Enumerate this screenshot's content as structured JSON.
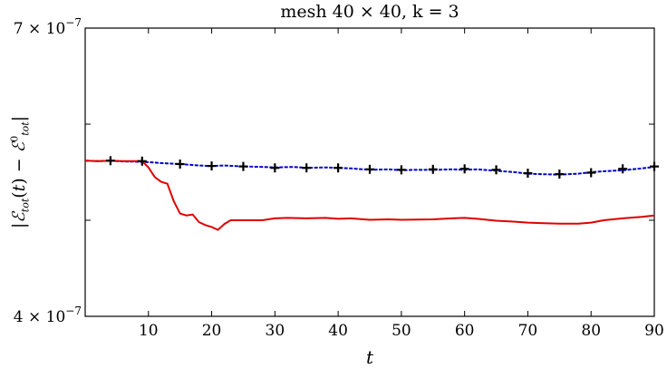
{
  "chart_data": {
    "type": "line",
    "title": "mesh 40 × 40, k = 3",
    "xlabel": "t",
    "ylabel": "|ℰtot(t) − ℰ0tot|",
    "xlim": [
      0,
      90
    ],
    "ylim": [
      4e-07,
      7e-07
    ],
    "x_ticks": [
      10,
      20,
      30,
      40,
      50,
      60,
      70,
      80,
      90
    ],
    "y_tick_labels": [
      {
        "value": 7e-07,
        "label": "7 × 10−7"
      },
      {
        "value": 4e-07,
        "label": "4 × 10−7"
      }
    ],
    "grid": false,
    "series": [
      {
        "color": "#0000cc",
        "style": "dashed",
        "x": [
          0,
          2,
          4,
          6,
          8,
          10,
          12,
          15,
          18,
          20,
          22,
          25,
          28,
          30,
          33,
          35,
          38,
          40,
          42,
          45,
          48,
          50,
          52,
          55,
          58,
          60,
          62,
          65,
          68,
          70,
          72,
          75,
          78,
          80,
          82,
          85,
          88,
          90
        ],
        "values": [
          5.62e-07,
          5.615e-07,
          5.62e-07,
          5.612e-07,
          5.61e-07,
          5.605e-07,
          5.595e-07,
          5.585e-07,
          5.57e-07,
          5.565e-07,
          5.57e-07,
          5.56e-07,
          5.555e-07,
          5.55e-07,
          5.555e-07,
          5.545e-07,
          5.55e-07,
          5.545e-07,
          5.54e-07,
          5.525e-07,
          5.53e-07,
          5.52e-07,
          5.525e-07,
          5.525e-07,
          5.53e-07,
          5.525e-07,
          5.53e-07,
          5.515e-07,
          5.5e-07,
          5.485e-07,
          5.48e-07,
          5.475e-07,
          5.485e-07,
          5.5e-07,
          5.51e-07,
          5.52e-07,
          5.54e-07,
          5.555e-07
        ]
      },
      {
        "color": "#e00000",
        "style": "solid",
        "x": [
          0,
          2,
          4,
          6,
          8,
          9,
          10,
          11,
          12,
          13,
          14,
          15,
          16,
          17,
          18,
          19,
          20,
          21,
          22,
          23,
          25,
          28,
          30,
          32,
          35,
          38,
          40,
          42,
          45,
          48,
          50,
          55,
          58,
          60,
          62,
          65,
          68,
          70,
          72,
          75,
          78,
          80,
          82,
          85,
          88,
          90
        ],
        "values": [
          5.62e-07,
          5.615e-07,
          5.62e-07,
          5.615e-07,
          5.615e-07,
          5.615e-07,
          5.55e-07,
          5.45e-07,
          5.4e-07,
          5.38e-07,
          5.2e-07,
          5.07e-07,
          5.05e-07,
          5.06e-07,
          4.98e-07,
          4.95e-07,
          4.93e-07,
          4.9e-07,
          4.96e-07,
          5e-07,
          5e-07,
          5e-07,
          5.02e-07,
          5.025e-07,
          5.02e-07,
          5.025e-07,
          5.015e-07,
          5.02e-07,
          5.005e-07,
          5.01e-07,
          5.005e-07,
          5.01e-07,
          5.02e-07,
          5.025e-07,
          5.015e-07,
          4.995e-07,
          4.985e-07,
          4.975e-07,
          4.97e-07,
          4.965e-07,
          4.965e-07,
          4.975e-07,
          5e-07,
          5.02e-07,
          5.035e-07,
          5.05e-07
        ]
      },
      {
        "color": "#000000",
        "style": "markers-plus",
        "x": [
          4,
          9,
          15,
          20,
          25,
          30,
          35,
          40,
          45,
          50,
          55,
          60,
          65,
          70,
          75,
          80,
          85,
          90
        ],
        "values": [
          5.62e-07,
          5.615e-07,
          5.585e-07,
          5.565e-07,
          5.56e-07,
          5.545e-07,
          5.545e-07,
          5.545e-07,
          5.53e-07,
          5.525e-07,
          5.53e-07,
          5.535e-07,
          5.525e-07,
          5.49e-07,
          5.48e-07,
          5.495e-07,
          5.535e-07,
          5.56e-07
        ]
      }
    ]
  }
}
